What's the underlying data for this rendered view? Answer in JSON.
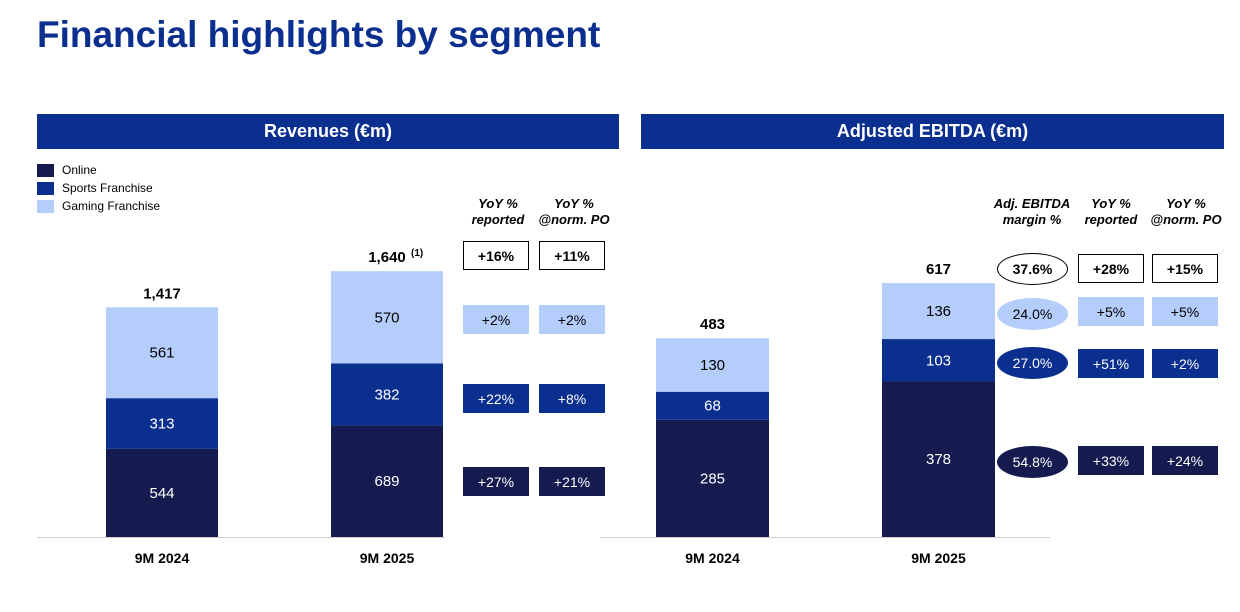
{
  "page": {
    "title": "Financial highlights by segment"
  },
  "colors": {
    "online": "#151a4f",
    "sports": "#0a2f8f",
    "gaming": "#b4cdfa",
    "header": "#0a2f8f"
  },
  "legend": [
    "Online",
    "Sports Franchise",
    "Gaming Franchise"
  ],
  "revenues": {
    "header": "Revenues (€m)",
    "col_reported": [
      "YoY %",
      "reported"
    ],
    "col_norm": [
      "YoY %",
      "@norm. PO"
    ],
    "rows": [
      {
        "reported": "+16%",
        "norm": "+11%",
        "style": "outline"
      },
      {
        "reported": "+2%",
        "norm": "+2%",
        "style": "light"
      },
      {
        "reported": "+22%",
        "norm": "+8%",
        "style": "mid"
      },
      {
        "reported": "+27%",
        "norm": "+21%",
        "style": "dark"
      }
    ]
  },
  "ebitda": {
    "header": "Adjusted EBITDA (€m)",
    "col_margin": [
      "Adj. EBITDA",
      "margin %"
    ],
    "col_reported": [
      "YoY %",
      "reported"
    ],
    "col_norm": [
      "YoY %",
      "@norm. PO"
    ],
    "rows": [
      {
        "margin": "37.6%",
        "reported": "+28%",
        "norm": "+15%",
        "style": "outline"
      },
      {
        "margin": "24.0%",
        "reported": "+5%",
        "norm": "+5%",
        "style": "light"
      },
      {
        "margin": "27.0%",
        "reported": "+51%",
        "norm": "+2%",
        "style": "mid"
      },
      {
        "margin": "54.8%",
        "reported": "+33%",
        "norm": "+24%",
        "style": "dark"
      }
    ]
  },
  "chart_data": [
    {
      "type": "bar",
      "stacked": true,
      "title": "Revenues (€m)",
      "categories": [
        "9M 2024",
        "9M 2025"
      ],
      "series": [
        {
          "name": "Online",
          "values": [
            544,
            689
          ]
        },
        {
          "name": "Sports Franchise",
          "values": [
            313,
            382
          ]
        },
        {
          "name": "Gaming Franchise",
          "values": [
            561,
            570
          ]
        }
      ],
      "totals": [
        "1,417",
        "1,640"
      ],
      "total_notes": [
        "",
        "(1)"
      ],
      "legend_position": "top-left"
    },
    {
      "type": "bar",
      "stacked": true,
      "title": "Adjusted EBITDA (€m)",
      "categories": [
        "9M 2024",
        "9M 2025"
      ],
      "series": [
        {
          "name": "Online",
          "values": [
            285,
            378
          ]
        },
        {
          "name": "Sports Franchise",
          "values": [
            68,
            103
          ]
        },
        {
          "name": "Gaming Franchise",
          "values": [
            130,
            136
          ]
        }
      ],
      "totals": [
        "483",
        "617"
      ],
      "total_notes": [
        "",
        ""
      ]
    }
  ]
}
